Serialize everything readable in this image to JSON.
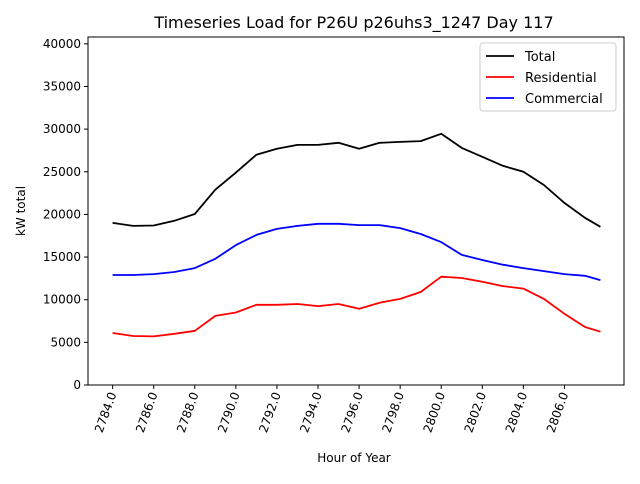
{
  "chart_data": {
    "type": "line",
    "title": "Timeseries Load for P26U p26uhs3_1247  Day 117",
    "xlabel": "Hour of Year",
    "ylabel": "kW total",
    "xlim": [
      2782.8,
      2808.9
    ],
    "ylim": [
      0,
      40800
    ],
    "xticks": [
      2784,
      2786,
      2788,
      2790,
      2792,
      2794,
      2796,
      2798,
      2800,
      2802,
      2804,
      2806
    ],
    "xtick_labels": [
      "2784.0",
      "2786.0",
      "2788.0",
      "2790.0",
      "2792.0",
      "2794.0",
      "2796.0",
      "2798.0",
      "2800.0",
      "2802.0",
      "2804.0",
      "2806.0"
    ],
    "yticks": [
      0,
      5000,
      10000,
      15000,
      20000,
      25000,
      30000,
      35000,
      40000
    ],
    "ytick_labels": [
      "0",
      "5000",
      "10000",
      "15000",
      "20000",
      "25000",
      "30000",
      "35000",
      "40000"
    ],
    "grid": false,
    "legend_position": "top-right",
    "x": [
      2784,
      2785,
      2786,
      2787,
      2788,
      2789,
      2790,
      2791,
      2792,
      2793,
      2794,
      2795,
      2796,
      2797,
      2798,
      2799,
      2800,
      2801,
      2802,
      2803,
      2804,
      2805,
      2806,
      2807,
      2807.75
    ],
    "series": [
      {
        "name": "Total",
        "color": "#000000",
        "values": [
          19000,
          18650,
          18700,
          19250,
          20050,
          22900,
          24900,
          27000,
          27700,
          28150,
          28150,
          28400,
          27700,
          28400,
          28500,
          28600,
          29450,
          27800,
          26750,
          25700,
          25000,
          23450,
          21350,
          19600,
          18550
        ]
      },
      {
        "name": "Residential",
        "color": "#ff0000",
        "values": [
          6100,
          5750,
          5700,
          6000,
          6350,
          8100,
          8500,
          9400,
          9400,
          9500,
          9250,
          9500,
          8950,
          9650,
          10100,
          10900,
          12700,
          12550,
          12100,
          11600,
          11300,
          10100,
          8350,
          6800,
          6250
        ]
      },
      {
        "name": "Commercial",
        "color": "#0000ff",
        "values": [
          12900,
          12900,
          13000,
          13250,
          13700,
          14800,
          16400,
          17600,
          18300,
          18650,
          18900,
          18900,
          18750,
          18750,
          18400,
          17700,
          16750,
          15250,
          14650,
          14100,
          13700,
          13350,
          13000,
          12800,
          12300
        ]
      }
    ]
  }
}
